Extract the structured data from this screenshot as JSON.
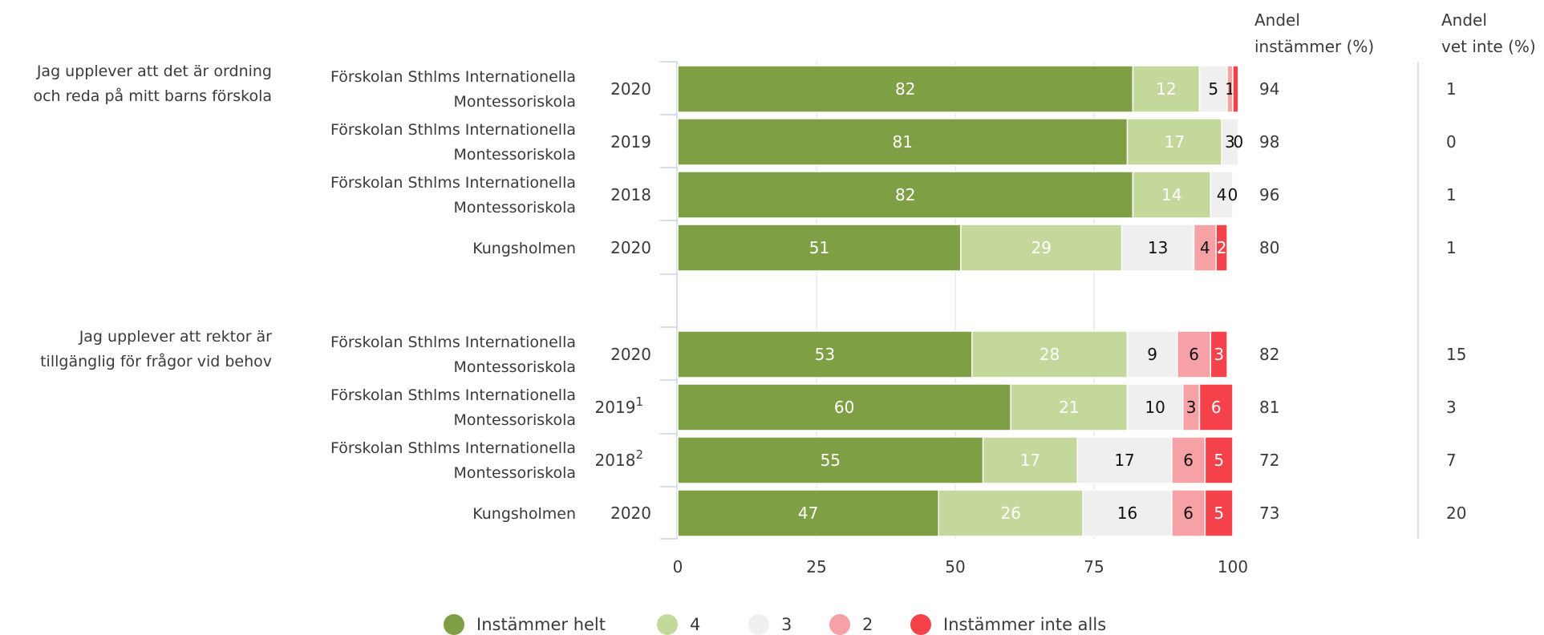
{
  "chart_data": {
    "type": "bar",
    "orientation": "horizontal",
    "stacked": true,
    "xlim": [
      0,
      100
    ],
    "x_ticks": [
      0,
      25,
      50,
      75,
      100
    ],
    "grid": true,
    "legend_position": "bottom",
    "segment_labels": [
      "Instämmer helt",
      "4",
      "3",
      "2",
      "Instämmer inte alls"
    ],
    "colors": [
      "#7f9f45",
      "#c4d89b",
      "#efefef",
      "#f6a1a5",
      "#f54149"
    ],
    "label_colors": [
      "#ffffff",
      "#ffffff",
      "#111111",
      "#111111",
      "#ffffff"
    ],
    "column_headers": [
      {
        "line1": "Andel",
        "line2": "instämmer (%)"
      },
      {
        "line1": "Andel",
        "line2": "vet inte (%)"
      }
    ],
    "groups": [
      {
        "question_lines": [
          "Jag upplever att det är ordning",
          "och reda på mitt barns förskola"
        ],
        "rows": [
          {
            "unit_lines": [
              "Förskolan Sthlms Internationella",
              "Montessoriskola"
            ],
            "year": "2020",
            "year_note": "",
            "values": [
              82,
              12,
              5,
              1,
              1
            ],
            "shown": [
              "82",
              "12",
              "5",
              "1",
              ""
            ],
            "agree_pct": "94",
            "dont_know_pct": "1"
          },
          {
            "unit_lines": [
              "Förskolan Sthlms Internationella",
              "Montessoriskola"
            ],
            "year": "2019",
            "year_note": "",
            "values": [
              81,
              17,
              3,
              0,
              0
            ],
            "shown": [
              "81",
              "17",
              "3",
              "0",
              ""
            ],
            "agree_pct": "98",
            "dont_know_pct": "0"
          },
          {
            "unit_lines": [
              "Förskolan Sthlms Internationella",
              "Montessoriskola"
            ],
            "year": "2018",
            "year_note": "",
            "values": [
              82,
              14,
              4,
              0,
              0
            ],
            "shown": [
              "82",
              "14",
              "4",
              "0",
              ""
            ],
            "agree_pct": "96",
            "dont_know_pct": "1"
          },
          {
            "unit_lines": [
              "Kungsholmen"
            ],
            "year": "2020",
            "year_note": "",
            "values": [
              51,
              29,
              13,
              4,
              2
            ],
            "shown": [
              "51",
              "29",
              "13",
              "4",
              "2"
            ],
            "agree_pct": "80",
            "dont_know_pct": "1"
          }
        ]
      },
      {
        "question_lines": [
          "Jag upplever att rektor är",
          "tillgänglig för frågor vid behov"
        ],
        "rows": [
          {
            "unit_lines": [
              "Förskolan Sthlms Internationella",
              "Montessoriskola"
            ],
            "year": "2020",
            "year_note": "",
            "values": [
              53,
              28,
              9,
              6,
              3
            ],
            "shown": [
              "53",
              "28",
              "9",
              "6",
              "3"
            ],
            "agree_pct": "82",
            "dont_know_pct": "15"
          },
          {
            "unit_lines": [
              "Förskolan Sthlms Internationella",
              "Montessoriskola"
            ],
            "year": "2019",
            "year_note": "1",
            "values": [
              60,
              21,
              10,
              3,
              6
            ],
            "shown": [
              "60",
              "21",
              "10",
              "3",
              "6"
            ],
            "agree_pct": "81",
            "dont_know_pct": "3"
          },
          {
            "unit_lines": [
              "Förskolan Sthlms Internationella",
              "Montessoriskola"
            ],
            "year": "2018",
            "year_note": "2",
            "values": [
              55,
              17,
              17,
              6,
              5
            ],
            "shown": [
              "55",
              "17",
              "17",
              "6",
              "5"
            ],
            "agree_pct": "72",
            "dont_know_pct": "7"
          },
          {
            "unit_lines": [
              "Kungsholmen"
            ],
            "year": "2020",
            "year_note": "",
            "values": [
              47,
              26,
              16,
              6,
              5
            ],
            "shown": [
              "47",
              "26",
              "16",
              "6",
              "5"
            ],
            "agree_pct": "73",
            "dont_know_pct": "20"
          }
        ]
      }
    ]
  }
}
